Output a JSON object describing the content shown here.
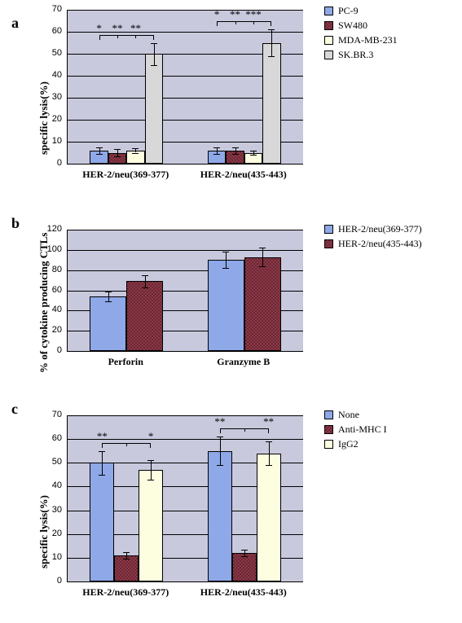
{
  "background": "#ffffff",
  "plot_bg": "#c8c9dd",
  "panels": {
    "a": {
      "label": "a",
      "y_title": "specific lysis(%)",
      "ylim": [
        0,
        70
      ],
      "ytick_step": 10,
      "x_categories": [
        "HER-2/neu(369-377)",
        "HER-2/neu(435-443)"
      ],
      "series": [
        {
          "name": "PC-9",
          "color": "#8ea8e8"
        },
        {
          "name": "SW480",
          "color": "#903848",
          "pattern": true
        },
        {
          "name": "MDA-MB-231",
          "color": "#fdfde0"
        },
        {
          "name": "SK.BR.3",
          "color": "#d8d8d8"
        }
      ],
      "groups": [
        {
          "values": [
            6,
            5,
            6,
            50
          ],
          "errors": [
            1.5,
            1.5,
            1,
            5
          ],
          "sig": [
            "*",
            "**",
            "**"
          ]
        },
        {
          "values": [
            6,
            6,
            5,
            55
          ],
          "errors": [
            1.5,
            1.5,
            1,
            6
          ],
          "sig": [
            "*",
            "**",
            "***"
          ]
        }
      ]
    },
    "b": {
      "label": "b",
      "y_title": "% of cytokine producing CTLs",
      "ylim": [
        0,
        120
      ],
      "ytick_step": 20,
      "x_categories": [
        "Perforin",
        "Granzyme B"
      ],
      "series": [
        {
          "name": "HER-2/neu(369-377)",
          "color": "#8ea8e8"
        },
        {
          "name": "HER-2/neu(435-443)",
          "color": "#903848",
          "pattern": true
        }
      ],
      "groups": [
        {
          "values": [
            54,
            69
          ],
          "errors": [
            5,
            6
          ]
        },
        {
          "values": [
            90,
            93
          ],
          "errors": [
            8,
            9
          ]
        }
      ]
    },
    "c": {
      "label": "c",
      "y_title": "specific lysis(%)",
      "ylim": [
        0,
        70
      ],
      "ytick_step": 10,
      "x_categories": [
        "HER-2/neu(369-377)",
        "HER-2/neu(435-443)"
      ],
      "series": [
        {
          "name": "None",
          "color": "#8ea8e8"
        },
        {
          "name": "Anti-MHC I",
          "color": "#903848",
          "pattern": true
        },
        {
          "name": "IgG2",
          "color": "#fdfde0"
        }
      ],
      "groups": [
        {
          "values": [
            50,
            11,
            47
          ],
          "errors": [
            5,
            1.5,
            4
          ],
          "sig": [
            "**",
            "",
            "*"
          ]
        },
        {
          "values": [
            55,
            12,
            54
          ],
          "errors": [
            6,
            1.5,
            5
          ],
          "sig": [
            "**",
            "",
            "**"
          ]
        }
      ]
    }
  }
}
